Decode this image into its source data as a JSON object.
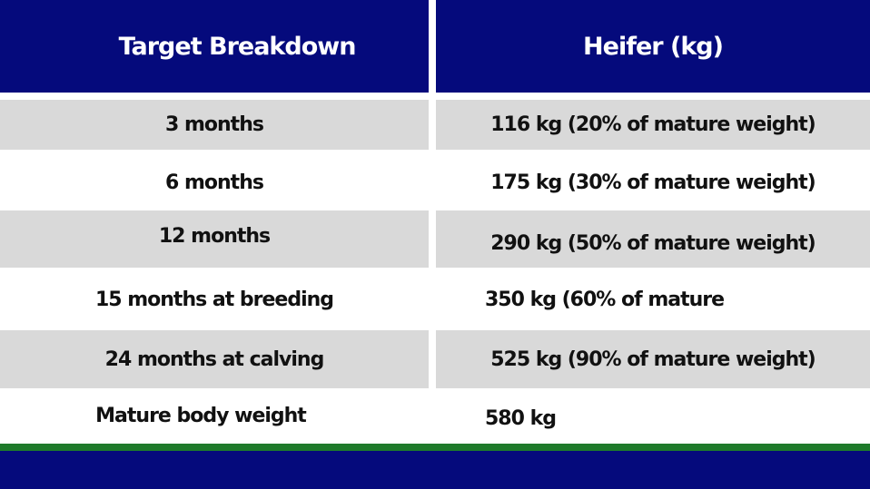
{
  "colors": {
    "header_bg": "#050a7c",
    "row_alt_bg": "#d9d9d9",
    "accent_line": "#1e7a2a"
  },
  "table": {
    "headers": [
      "Target Breakdown",
      "Heifer (kg)"
    ],
    "rows": [
      [
        "3 months",
        "116 kg (20% of mature weight)"
      ],
      [
        "6 months",
        "175 kg (30% of mature weight)"
      ],
      [
        "12 months",
        "290 kg (50% of mature weight)"
      ],
      [
        "15 months at breeding",
        "350 kg (60% of mature"
      ],
      [
        "24 months at calving",
        "525 kg (90% of mature weight)"
      ],
      [
        "Mature body weight",
        "580 kg"
      ]
    ]
  }
}
